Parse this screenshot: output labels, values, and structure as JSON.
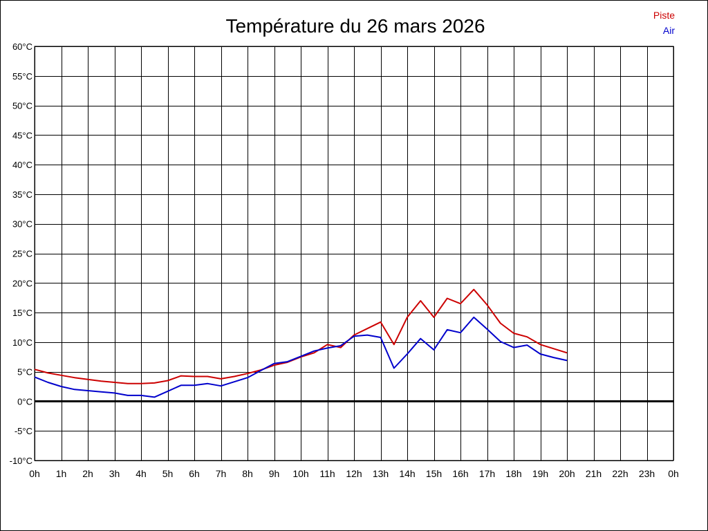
{
  "chart_data": {
    "type": "line",
    "title": "Température du 26 mars 2026",
    "xlabel": "",
    "ylabel": "",
    "ylim": [
      -10,
      60
    ],
    "y_ticks": [
      -10,
      -5,
      0,
      5,
      10,
      15,
      20,
      25,
      30,
      35,
      40,
      45,
      50,
      55,
      60
    ],
    "y_tick_labels": [
      "-10°C",
      "-5°C",
      "0°C",
      "5°C",
      "10°C",
      "15°C",
      "20°C",
      "25°C",
      "30°C",
      "35°C",
      "40°C",
      "45°C",
      "50°C",
      "55°C",
      "60°C"
    ],
    "xlim": [
      0,
      24
    ],
    "x_ticks": [
      0,
      1,
      2,
      3,
      4,
      5,
      6,
      7,
      8,
      9,
      10,
      11,
      12,
      13,
      14,
      15,
      16,
      17,
      18,
      19,
      20,
      21,
      22,
      23,
      24
    ],
    "x_tick_labels": [
      "0h",
      "1h",
      "2h",
      "3h",
      "4h",
      "5h",
      "6h",
      "7h",
      "8h",
      "9h",
      "10h",
      "11h",
      "12h",
      "13h",
      "14h",
      "15h",
      "16h",
      "17h",
      "18h",
      "19h",
      "20h",
      "21h",
      "22h",
      "23h",
      "0h"
    ],
    "grid": true,
    "zero_line": true,
    "legend_position": "top-right",
    "series": [
      {
        "name": "Piste",
        "color": "#cc0000",
        "x": [
          0,
          0.5,
          1,
          1.5,
          2,
          2.5,
          3,
          3.5,
          4,
          4.5,
          5,
          5.5,
          6,
          6.5,
          7,
          7.5,
          8,
          8.5,
          9,
          9.5,
          10,
          10.5,
          11,
          11.5,
          12,
          12.5,
          13,
          13.5,
          14,
          14.5,
          15,
          15.5,
          16,
          16.5,
          17,
          17.5,
          18,
          18.5,
          19,
          19.5,
          20
        ],
        "values": [
          5.4,
          4.8,
          4.4,
          4.0,
          3.7,
          3.4,
          3.2,
          3.0,
          3.0,
          3.1,
          3.5,
          4.3,
          4.2,
          4.2,
          3.8,
          4.2,
          4.7,
          5.3,
          6.1,
          6.6,
          7.5,
          8.2,
          9.6,
          9.1,
          11.2,
          12.3,
          13.4,
          9.6,
          14.2,
          17.0,
          14.2,
          17.4,
          16.5,
          18.9,
          16.3,
          13.2,
          11.5,
          10.9,
          9.6,
          8.9,
          8.2
        ]
      },
      {
        "name": "Air",
        "color": "#0000cc",
        "x": [
          0,
          0.5,
          1,
          1.5,
          2,
          2.5,
          3,
          3.5,
          4,
          4.5,
          5,
          5.5,
          6,
          6.5,
          7,
          7.5,
          8,
          8.5,
          9,
          9.5,
          10,
          10.5,
          11,
          11.5,
          12,
          12.5,
          13,
          13.5,
          14,
          14.5,
          15,
          15.5,
          16,
          16.5,
          17,
          17.5,
          18,
          18.5,
          19,
          19.5,
          20
        ],
        "values": [
          4.1,
          3.2,
          2.5,
          2.0,
          1.8,
          1.6,
          1.4,
          1.0,
          1.0,
          0.7,
          1.7,
          2.7,
          2.7,
          3.0,
          2.6,
          3.3,
          4.0,
          5.2,
          6.4,
          6.7,
          7.6,
          8.5,
          9.0,
          9.4,
          11.0,
          11.2,
          10.8,
          5.6,
          8.0,
          10.6,
          8.7,
          12.1,
          11.6,
          14.2,
          12.2,
          10.1,
          9.1,
          9.5,
          8.0,
          7.4,
          6.9
        ]
      }
    ]
  }
}
